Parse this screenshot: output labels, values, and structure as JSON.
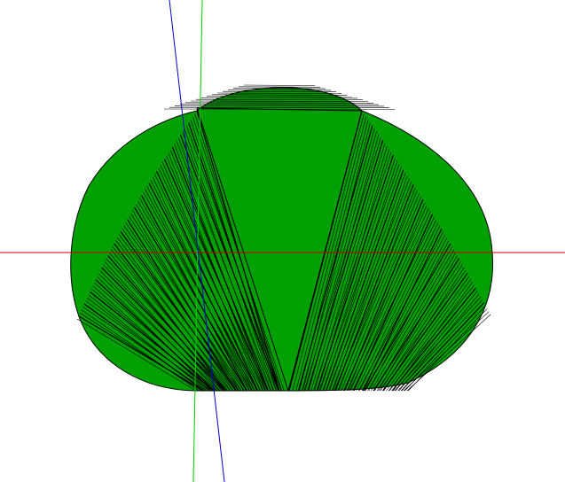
{
  "scene": {
    "background_color": "#ffffff",
    "body_fill_color": "#00a000",
    "edge_color": "#000000",
    "axes": {
      "x_axis_color": "#cc0000",
      "y_axis_color": "#00cc00",
      "z_axis_color": "#0000cc"
    }
  }
}
